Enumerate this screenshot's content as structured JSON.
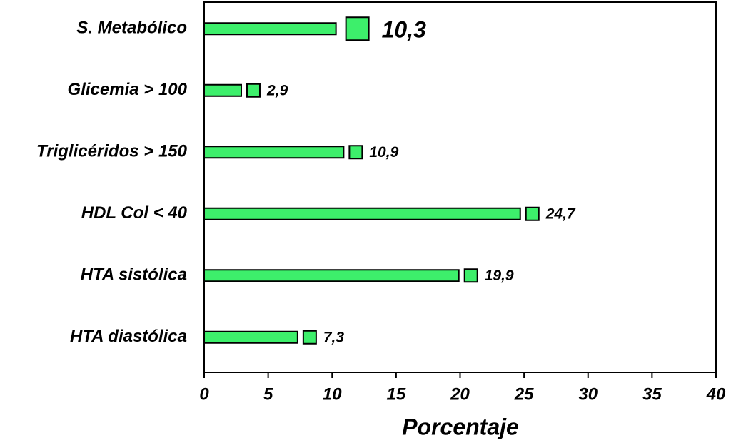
{
  "chart_data": {
    "type": "hbar",
    "categories": [
      "S. Metabólico",
      "Glicemia > 100",
      "Triglicéridos > 150",
      "HDL Col < 40",
      "HTA sistólica",
      "HTA diastólica"
    ],
    "values": [
      10.3,
      2.9,
      10.9,
      24.7,
      19.9,
      7.3
    ],
    "value_labels": [
      "10,3",
      "2,9",
      "10,9",
      "24,7",
      "19,9",
      "7,3"
    ],
    "color": "#3def6b",
    "xlabel": "Porcentaje",
    "xlim": [
      0,
      40
    ],
    "xticks": [
      0,
      5,
      10,
      15,
      20,
      25,
      30,
      35,
      40
    ],
    "grid": false
  }
}
